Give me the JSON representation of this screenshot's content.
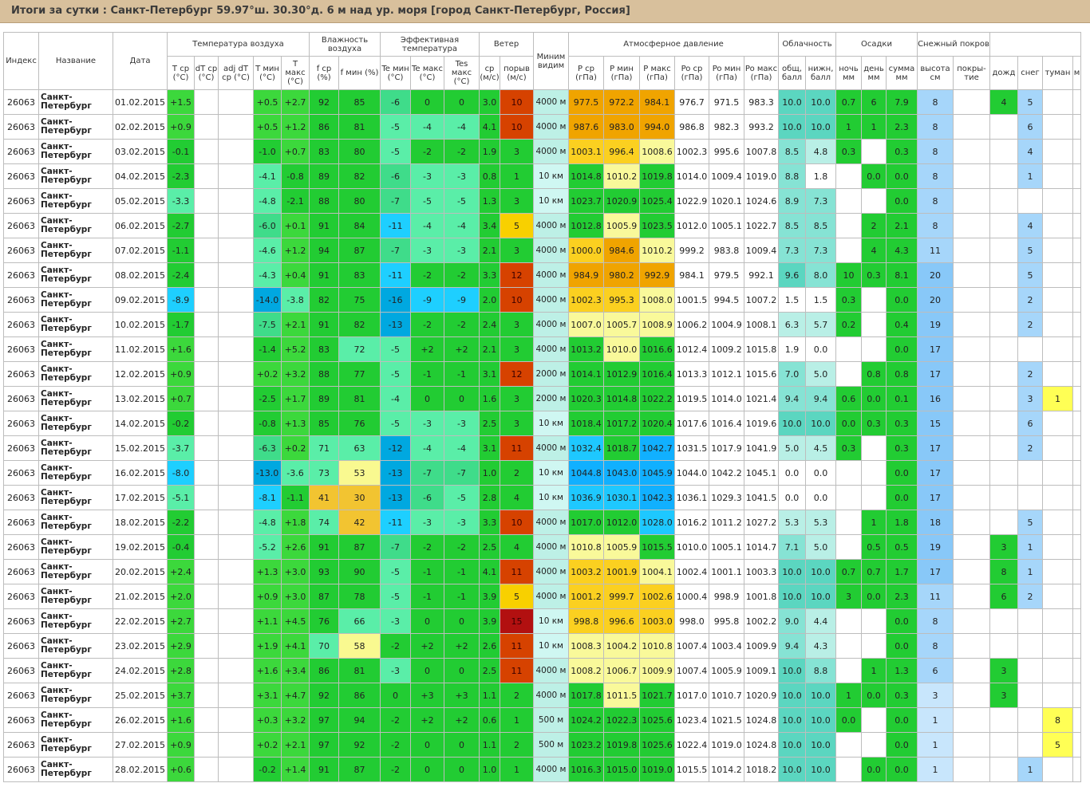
{
  "title": "Итоги за сутки : Санкт-Петербург 59.97°ш. 30.30°д. 6 м над ур. моря [город Санкт-Петербург, Россия]",
  "header": {
    "index": "Индекс",
    "name": "Название",
    "date": "Дата",
    "g_temp": "Температура воздуха",
    "g_hum": "Влажность воздуха",
    "g_eff": "Эффективная температура",
    "g_wind": "Ветер",
    "vis": "Миним видим",
    "g_pres": "Атмосферное давление",
    "g_cloud": "Облачность",
    "g_prec": "Осадки",
    "g_snow": "Снежный покров",
    "t_avg": "T ср (°C)",
    "dt": "dT ср (°C)",
    "adj_dt": "adj dT ср (°C)",
    "t_min": "T мин (°C)",
    "t_max": "T макс (°C)",
    "f_avg": "f ср (%)",
    "f_min": "f мин (%)",
    "te_min": "Te мин (°C)",
    "te_max": "Te макс (°C)",
    "tes_max": "Tes макс (°C)",
    "w_avg": "ср (м/с)",
    "gust": "порыв (м/с)",
    "p_avg": "P ср (гПа)",
    "p_min": "P мин (гПа)",
    "p_max": "P макс (гПа)",
    "po_avg": "Po ср (гПа)",
    "po_min": "Po мин (гПа)",
    "po_max": "Po макс (гПа)",
    "c_total": "общ, балл",
    "c_low": "нижн, балл",
    "r_night": "ночь мм",
    "r_day": "день мм",
    "r_sum": "сумма мм",
    "s_height": "высота см",
    "s_cover": "покры-тие",
    "ph_rain": "дожд",
    "ph_snow": "снег",
    "ph_fog": "туман",
    "ph_cut": "м"
  },
  "columns": [
    "index",
    "name",
    "date",
    "t_avg",
    "dt",
    "adj_dt",
    "t_min",
    "t_max",
    "f_avg",
    "f_min",
    "te_min",
    "te_max",
    "tes_max",
    "w_avg",
    "gust",
    "vis",
    "p_avg",
    "p_min",
    "p_max",
    "po_avg",
    "po_min",
    "po_max",
    "c_total",
    "c_low",
    "r_night",
    "r_day",
    "r_sum",
    "s_height",
    "s_cover",
    "ph_rain",
    "ph_snow",
    "ph_fog",
    "ph_cut"
  ],
  "rows": [
    [
      "26063",
      "Санкт-Петербург",
      "01.02.2015",
      "+1.5",
      "",
      "",
      "+0.5",
      "+2.7",
      "92",
      "85",
      "-6",
      "0",
      "0",
      "3.0",
      "10",
      "4000 м",
      "977.5",
      "972.2",
      "984.1",
      "976.7",
      "971.5",
      "983.3",
      "10.0",
      "10.0",
      "0.7",
      "6",
      "7.9",
      "8",
      "",
      "4",
      "5",
      "",
      ""
    ],
    [
      "26063",
      "Санкт-Петербург",
      "02.02.2015",
      "+0.9",
      "",
      "",
      "+0.5",
      "+1.2",
      "86",
      "81",
      "-5",
      "-4",
      "-4",
      "4.1",
      "10",
      "4000 м",
      "987.6",
      "983.0",
      "994.0",
      "986.8",
      "982.3",
      "993.2",
      "10.0",
      "10.0",
      "1",
      "1",
      "2.3",
      "8",
      "",
      "",
      "6",
      "",
      ""
    ],
    [
      "26063",
      "Санкт-Петербург",
      "03.02.2015",
      "-0.1",
      "",
      "",
      "-1.0",
      "+0.7",
      "83",
      "80",
      "-5",
      "-2",
      "-2",
      "1.9",
      "3",
      "4000 м",
      "1003.1",
      "996.4",
      "1008.6",
      "1002.3",
      "995.6",
      "1007.8",
      "8.5",
      "4.8",
      "0.3",
      "",
      "0.3",
      "8",
      "",
      "",
      "4",
      "",
      ""
    ],
    [
      "26063",
      "Санкт-Петербург",
      "04.02.2015",
      "-2.3",
      "",
      "",
      "-4.1",
      "-0.8",
      "89",
      "82",
      "-6",
      "-3",
      "-3",
      "0.8",
      "1",
      "10 км",
      "1014.8",
      "1010.2",
      "1019.8",
      "1014.0",
      "1009.4",
      "1019.0",
      "8.8",
      "1.8",
      "",
      "0.0",
      "0.0",
      "8",
      "",
      "",
      "1",
      "",
      ""
    ],
    [
      "26063",
      "Санкт-Петербург",
      "05.02.2015",
      "-3.3",
      "",
      "",
      "-4.8",
      "-2.1",
      "88",
      "80",
      "-7",
      "-5",
      "-5",
      "1.3",
      "3",
      "10 км",
      "1023.7",
      "1020.9",
      "1025.4",
      "1022.9",
      "1020.1",
      "1024.6",
      "8.9",
      "7.3",
      "",
      "",
      "0.0",
      "8",
      "",
      "",
      "",
      "",
      ""
    ],
    [
      "26063",
      "Санкт-Петербург",
      "06.02.2015",
      "-2.7",
      "",
      "",
      "-6.0",
      "+0.1",
      "91",
      "84",
      "-11",
      "-4",
      "-4",
      "3.4",
      "5",
      "4000 м",
      "1012.8",
      "1005.9",
      "1023.5",
      "1012.0",
      "1005.1",
      "1022.7",
      "8.5",
      "8.5",
      "",
      "2",
      "2.1",
      "8",
      "",
      "",
      "4",
      "",
      ""
    ],
    [
      "26063",
      "Санкт-Петербург",
      "07.02.2015",
      "-1.1",
      "",
      "",
      "-4.6",
      "+1.2",
      "94",
      "87",
      "-7",
      "-3",
      "-3",
      "2.1",
      "3",
      "4000 м",
      "1000.0",
      "984.6",
      "1010.2",
      "999.2",
      "983.8",
      "1009.4",
      "7.3",
      "7.3",
      "",
      "4",
      "4.3",
      "11",
      "",
      "",
      "5",
      "",
      ""
    ],
    [
      "26063",
      "Санкт-Петербург",
      "08.02.2015",
      "-2.4",
      "",
      "",
      "-4.3",
      "+0.4",
      "91",
      "83",
      "-11",
      "-2",
      "-2",
      "3.3",
      "12",
      "4000 м",
      "984.9",
      "980.2",
      "992.9",
      "984.1",
      "979.5",
      "992.1",
      "9.6",
      "8.0",
      "10",
      "0.3",
      "8.1",
      "20",
      "",
      "",
      "5",
      "",
      ""
    ],
    [
      "26063",
      "Санкт-Петербург",
      "09.02.2015",
      "-8.9",
      "",
      "",
      "-14.0",
      "-3.8",
      "82",
      "75",
      "-16",
      "-9",
      "-9",
      "2.0",
      "10",
      "4000 м",
      "1002.3",
      "995.3",
      "1008.0",
      "1001.5",
      "994.5",
      "1007.2",
      "1.5",
      "1.5",
      "0.3",
      "",
      "0.0",
      "20",
      "",
      "",
      "2",
      "",
      ""
    ],
    [
      "26063",
      "Санкт-Петербург",
      "10.02.2015",
      "-1.7",
      "",
      "",
      "-7.5",
      "+2.1",
      "91",
      "82",
      "-13",
      "-2",
      "-2",
      "2.4",
      "3",
      "4000 м",
      "1007.0",
      "1005.7",
      "1008.9",
      "1006.2",
      "1004.9",
      "1008.1",
      "6.3",
      "5.7",
      "0.2",
      "",
      "0.4",
      "19",
      "",
      "",
      "2",
      "",
      ""
    ],
    [
      "26063",
      "Санкт-Петербург",
      "11.02.2015",
      "+1.6",
      "",
      "",
      "-1.4",
      "+5.2",
      "83",
      "72",
      "-5",
      "+2",
      "+2",
      "2.1",
      "3",
      "4000 м",
      "1013.2",
      "1010.0",
      "1016.6",
      "1012.4",
      "1009.2",
      "1015.8",
      "1.9",
      "0.0",
      "",
      "",
      "0.0",
      "17",
      "",
      "",
      "",
      "",
      ""
    ],
    [
      "26063",
      "Санкт-Петербург",
      "12.02.2015",
      "+0.9",
      "",
      "",
      "+0.2",
      "+3.2",
      "88",
      "77",
      "-5",
      "-1",
      "-1",
      "3.1",
      "12",
      "2000 м",
      "1014.1",
      "1012.9",
      "1016.4",
      "1013.3",
      "1012.1",
      "1015.6",
      "7.0",
      "5.0",
      "",
      "0.8",
      "0.8",
      "17",
      "",
      "",
      "2",
      "",
      ""
    ],
    [
      "26063",
      "Санкт-Петербург",
      "13.02.2015",
      "+0.7",
      "",
      "",
      "-2.5",
      "+1.7",
      "89",
      "81",
      "-4",
      "0",
      "0",
      "1.6",
      "3",
      "2000 м",
      "1020.3",
      "1014.8",
      "1022.2",
      "1019.5",
      "1014.0",
      "1021.4",
      "9.4",
      "9.4",
      "0.6",
      "0.0",
      "0.1",
      "16",
      "",
      "",
      "3",
      "1",
      ""
    ],
    [
      "26063",
      "Санкт-Петербург",
      "14.02.2015",
      "-0.2",
      "",
      "",
      "-0.8",
      "+1.3",
      "85",
      "76",
      "-5",
      "-3",
      "-3",
      "2.5",
      "3",
      "10 км",
      "1018.4",
      "1017.2",
      "1020.4",
      "1017.6",
      "1016.4",
      "1019.6",
      "10.0",
      "10.0",
      "0.0",
      "0.3",
      "0.3",
      "15",
      "",
      "",
      "6",
      "",
      ""
    ],
    [
      "26063",
      "Санкт-Петербург",
      "15.02.2015",
      "-3.7",
      "",
      "",
      "-6.3",
      "+0.2",
      "71",
      "63",
      "-12",
      "-4",
      "-4",
      "3.1",
      "11",
      "4000 м",
      "1032.4",
      "1018.7",
      "1042.7",
      "1031.5",
      "1017.9",
      "1041.9",
      "5.0",
      "4.5",
      "0.3",
      "",
      "0.3",
      "17",
      "",
      "",
      "2",
      "",
      ""
    ],
    [
      "26063",
      "Санкт-Петербург",
      "16.02.2015",
      "-8.0",
      "",
      "",
      "-13.0",
      "-3.6",
      "73",
      "53",
      "-13",
      "-7",
      "-7",
      "1.0",
      "2",
      "10 км",
      "1044.8",
      "1043.0",
      "1045.9",
      "1044.0",
      "1042.2",
      "1045.1",
      "0.0",
      "0.0",
      "",
      "",
      "0.0",
      "17",
      "",
      "",
      "",
      "",
      ""
    ],
    [
      "26063",
      "Санкт-Петербург",
      "17.02.2015",
      "-5.1",
      "",
      "",
      "-8.1",
      "-1.1",
      "41",
      "30",
      "-13",
      "-6",
      "-5",
      "2.8",
      "4",
      "10 км",
      "1036.9",
      "1030.1",
      "1042.3",
      "1036.1",
      "1029.3",
      "1041.5",
      "0.0",
      "0.0",
      "",
      "",
      "0.0",
      "17",
      "",
      "",
      "",
      "",
      ""
    ],
    [
      "26063",
      "Санкт-Петербург",
      "18.02.2015",
      "-2.2",
      "",
      "",
      "-4.8",
      "+1.8",
      "74",
      "42",
      "-11",
      "-3",
      "-3",
      "3.3",
      "10",
      "4000 м",
      "1017.0",
      "1012.0",
      "1028.0",
      "1016.2",
      "1011.2",
      "1027.2",
      "5.3",
      "5.3",
      "",
      "1",
      "1.8",
      "18",
      "",
      "",
      "5",
      "",
      ""
    ],
    [
      "26063",
      "Санкт-Петербург",
      "19.02.2015",
      "-0.4",
      "",
      "",
      "-5.2",
      "+2.6",
      "91",
      "87",
      "-7",
      "-2",
      "-2",
      "2.5",
      "4",
      "4000 м",
      "1010.8",
      "1005.9",
      "1015.5",
      "1010.0",
      "1005.1",
      "1014.7",
      "7.1",
      "5.0",
      "",
      "0.5",
      "0.5",
      "19",
      "",
      "3",
      "1",
      "",
      ""
    ],
    [
      "26063",
      "Санкт-Петербург",
      "20.02.2015",
      "+2.4",
      "",
      "",
      "+1.3",
      "+3.0",
      "93",
      "90",
      "-5",
      "-1",
      "-1",
      "4.1",
      "11",
      "4000 м",
      "1003.2",
      "1001.9",
      "1004.1",
      "1002.4",
      "1001.1",
      "1003.3",
      "10.0",
      "10.0",
      "0.7",
      "0.7",
      "1.7",
      "17",
      "",
      "8",
      "1",
      "",
      ""
    ],
    [
      "26063",
      "Санкт-Петербург",
      "21.02.2015",
      "+2.0",
      "",
      "",
      "+0.9",
      "+3.0",
      "87",
      "78",
      "-5",
      "-1",
      "-1",
      "3.9",
      "5",
      "4000 м",
      "1001.2",
      "999.7",
      "1002.6",
      "1000.4",
      "998.9",
      "1001.8",
      "10.0",
      "10.0",
      "3",
      "0.0",
      "2.3",
      "11",
      "",
      "6",
      "2",
      "",
      ""
    ],
    [
      "26063",
      "Санкт-Петербург",
      "22.02.2015",
      "+2.7",
      "",
      "",
      "+1.1",
      "+4.5",
      "76",
      "66",
      "-3",
      "0",
      "0",
      "3.9",
      "15",
      "10 км",
      "998.8",
      "996.6",
      "1003.0",
      "998.0",
      "995.8",
      "1002.2",
      "9.0",
      "4.4",
      "",
      "",
      "0.0",
      "8",
      "",
      "",
      "",
      "",
      ""
    ],
    [
      "26063",
      "Санкт-Петербург",
      "23.02.2015",
      "+2.9",
      "",
      "",
      "+1.9",
      "+4.1",
      "70",
      "58",
      "-2",
      "+2",
      "+2",
      "2.6",
      "11",
      "10 км",
      "1008.3",
      "1004.2",
      "1010.8",
      "1007.4",
      "1003.4",
      "1009.9",
      "9.4",
      "4.3",
      "",
      "",
      "0.0",
      "8",
      "",
      "",
      "",
      "",
      ""
    ],
    [
      "26063",
      "Санкт-Петербург",
      "24.02.2015",
      "+2.8",
      "",
      "",
      "+1.6",
      "+3.4",
      "86",
      "81",
      "-3",
      "0",
      "0",
      "2.5",
      "11",
      "4000 м",
      "1008.2",
      "1006.7",
      "1009.9",
      "1007.4",
      "1005.9",
      "1009.1",
      "10.0",
      "8.8",
      "",
      "1",
      "1.3",
      "6",
      "",
      "3",
      "",
      "",
      ""
    ],
    [
      "26063",
      "Санкт-Петербург",
      "25.02.2015",
      "+3.7",
      "",
      "",
      "+3.1",
      "+4.7",
      "92",
      "86",
      "0",
      "+3",
      "+3",
      "1.1",
      "2",
      "4000 м",
      "1017.8",
      "1011.5",
      "1021.7",
      "1017.0",
      "1010.7",
      "1020.9",
      "10.0",
      "10.0",
      "1",
      "0.0",
      "0.3",
      "3",
      "",
      "3",
      "",
      "",
      ""
    ],
    [
      "26063",
      "Санкт-Петербург",
      "26.02.2015",
      "+1.6",
      "",
      "",
      "+0.3",
      "+3.2",
      "97",
      "94",
      "-2",
      "+2",
      "+2",
      "0.6",
      "1",
      "500 м",
      "1024.2",
      "1022.3",
      "1025.6",
      "1023.4",
      "1021.5",
      "1024.8",
      "10.0",
      "10.0",
      "0.0",
      "",
      "0.0",
      "1",
      "",
      "",
      "",
      "8",
      ""
    ],
    [
      "26063",
      "Санкт-Петербург",
      "27.02.2015",
      "+0.9",
      "",
      "",
      "+0.2",
      "+2.1",
      "97",
      "92",
      "-2",
      "0",
      "0",
      "1.1",
      "2",
      "500 м",
      "1023.2",
      "1019.8",
      "1025.6",
      "1022.4",
      "1019.0",
      "1024.8",
      "10.0",
      "10.0",
      "",
      "",
      "0.0",
      "1",
      "",
      "",
      "",
      "5",
      ""
    ],
    [
      "26063",
      "Санкт-Петербург",
      "28.02.2015",
      "+0.6",
      "",
      "",
      "-0.2",
      "+1.4",
      "91",
      "87",
      "-2",
      "0",
      "0",
      "1.0",
      "1",
      "4000 м",
      "1016.3",
      "1015.0",
      "1019.0",
      "1015.5",
      "1014.2",
      "1018.2",
      "10.0",
      "10.0",
      "",
      "0.0",
      "0.0",
      "1",
      "",
      "",
      "1",
      "",
      ""
    ]
  ],
  "colors": {
    "temp": [
      "#00a8e0",
      "#1ecfff",
      "#3fdc8a",
      "#5aeea8",
      "#22cc33",
      "#3cd83c"
    ],
    "hum_high": "#22cc33",
    "hum_mid": "#5aeea8",
    "hum_low": "#f9f990",
    "hum_vlow": "#f2c431",
    "wind_low": "#22cc33",
    "wind_mid": "#f8d000",
    "wind_high": "#d64200",
    "wind_vhigh": "#b21010",
    "vis_far": "#cff7f2",
    "vis_mid": "#bdf0e6",
    "pres_vlow": "#f0a400",
    "pres_low": "#fbd020",
    "pres_mid": "#f9f99a",
    "pres_norm": "#22cc33",
    "pres_high": "#1ec8ff",
    "pres_vhigh": "#11b0ff",
    "cloud_full": "#5bd6c0",
    "cloud_mid": "#86e3d4",
    "cloud_low": "#b9efe6",
    "prec": "#22cc33",
    "snow_deep": "#88c8f8",
    "snow_mid": "#a6d6fa",
    "snow_low": "#c8e6fc",
    "ph_rain": "#22cc33",
    "ph_snow": "#a6d6fa",
    "ph_fog": "#ffff55"
  }
}
